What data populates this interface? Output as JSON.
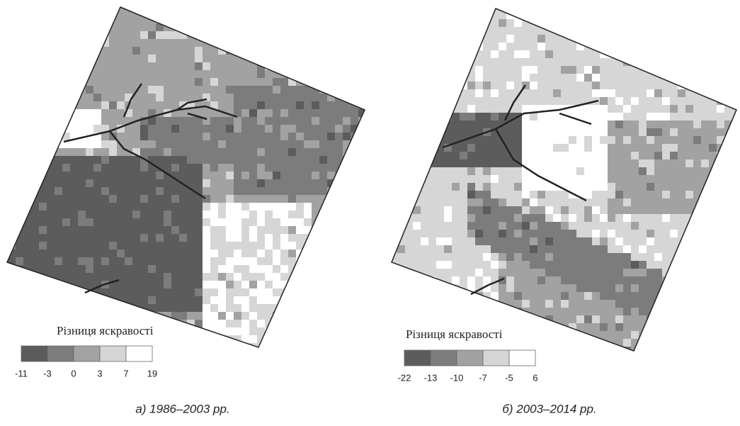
{
  "panels": [
    {
      "legend": {
        "title": "Різниця яскравості",
        "ticks": [
          -11,
          -3,
          0,
          3,
          7,
          19
        ],
        "colors": [
          "#5c5c5c",
          "#7c7c7c",
          "#a2a2a2",
          "#d6d6d6",
          "#ffffff"
        ]
      },
      "caption": "а) 1986–2003 рр."
    },
    {
      "legend": {
        "title": "Різниця яскравості",
        "ticks": [
          -22,
          -13,
          -10,
          -7,
          -5,
          6
        ],
        "colors": [
          "#5c5c5c",
          "#7c7c7c",
          "#a2a2a2",
          "#d6d6d6",
          "#ffffff"
        ]
      },
      "caption": "б) 2003–2014 рр."
    }
  ]
}
